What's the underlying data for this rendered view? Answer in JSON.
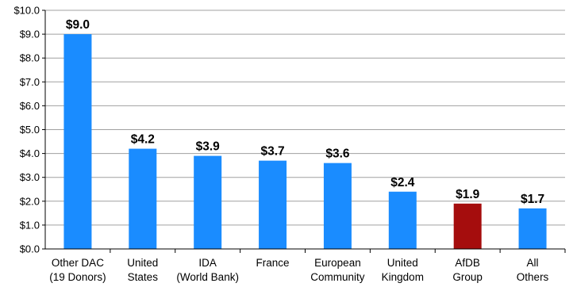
{
  "chart_data": {
    "type": "bar",
    "categories": [
      [
        "Other DAC",
        "(19 Donors)"
      ],
      [
        "United",
        "States"
      ],
      [
        "IDA",
        "(World Bank)"
      ],
      [
        "France"
      ],
      [
        "European",
        "Community"
      ],
      [
        "United",
        "Kingdom"
      ],
      [
        "AfDB",
        "Group"
      ],
      [
        "All",
        "Others"
      ]
    ],
    "values": [
      9.0,
      4.2,
      3.9,
      3.7,
      3.6,
      2.4,
      1.9,
      1.7
    ],
    "value_labels": [
      "$9.0",
      "$4.2",
      "$3.9",
      "$3.7",
      "$3.6",
      "$2.4",
      "$1.9",
      "$1.7"
    ],
    "y_ticks": [
      0,
      1,
      2,
      3,
      4,
      5,
      6,
      7,
      8,
      9,
      10
    ],
    "y_tick_labels": [
      "$0.0",
      "$1.0",
      "$2.0",
      "$3.0",
      "$4.0",
      "$5.0",
      "$6.0",
      "$7.0",
      "$8.0",
      "$9.0",
      "$10.0"
    ],
    "ylim": [
      0,
      10
    ],
    "grid": true,
    "colors": {
      "default_bar": "#1a8cff",
      "highlight_bar": "#a50d0d",
      "grid": "#a0a0a0",
      "axis": "#000000"
    },
    "highlight_index": 6
  }
}
